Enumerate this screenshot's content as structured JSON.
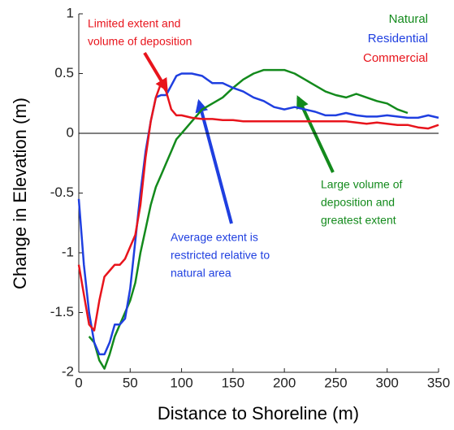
{
  "chart_data": {
    "type": "line",
    "x_label": "Distance to Shoreline (m)",
    "y_label": "Change in Elevation (m)",
    "x": [
      0,
      5,
      10,
      15,
      20,
      25,
      30,
      35,
      40,
      45,
      50,
      55,
      60,
      65,
      70,
      75,
      80,
      85,
      90,
      95,
      100,
      110,
      120,
      130,
      140,
      150,
      160,
      170,
      180,
      190,
      200,
      210,
      220,
      230,
      240,
      250,
      260,
      270,
      280,
      290,
      300,
      310,
      320,
      330,
      340,
      350
    ],
    "series": [
      {
        "name": "Natural",
        "color": "#138a1c",
        "values": [
          null,
          null,
          -1.7,
          -1.75,
          -1.9,
          -1.97,
          -1.85,
          -1.7,
          -1.6,
          -1.5,
          -1.4,
          -1.25,
          -1.0,
          -0.8,
          -0.6,
          -0.45,
          -0.35,
          -0.25,
          -0.15,
          -0.05,
          0.0,
          0.1,
          0.2,
          0.25,
          0.3,
          0.38,
          0.45,
          0.5,
          0.53,
          0.53,
          0.53,
          0.5,
          0.45,
          0.4,
          0.35,
          0.32,
          0.3,
          0.33,
          0.3,
          0.27,
          0.25,
          0.2,
          0.17,
          null,
          null,
          null
        ]
      },
      {
        "name": "Residential",
        "color": "#1f3fe0",
        "values": [
          -0.55,
          -1.1,
          -1.5,
          -1.75,
          -1.85,
          -1.85,
          -1.75,
          -1.6,
          -1.6,
          -1.55,
          -1.3,
          -0.9,
          -0.5,
          -0.15,
          0.1,
          0.3,
          0.32,
          0.32,
          0.4,
          0.48,
          0.5,
          0.5,
          0.48,
          0.42,
          0.42,
          0.38,
          0.35,
          0.3,
          0.27,
          0.22,
          0.2,
          0.22,
          0.2,
          0.18,
          0.15,
          0.15,
          0.17,
          0.15,
          0.14,
          0.14,
          0.15,
          0.14,
          0.13,
          0.13,
          0.15,
          0.13
        ]
      },
      {
        "name": "Commercial",
        "color": "#e8141c",
        "values": [
          -1.1,
          -1.35,
          -1.6,
          -1.65,
          -1.4,
          -1.2,
          -1.15,
          -1.1,
          -1.1,
          -1.05,
          -0.95,
          -0.85,
          -0.6,
          -0.2,
          0.1,
          0.3,
          0.42,
          0.35,
          0.2,
          0.15,
          0.15,
          0.13,
          0.12,
          0.12,
          0.11,
          0.11,
          0.1,
          0.1,
          0.1,
          0.1,
          0.1,
          0.1,
          0.1,
          0.1,
          0.1,
          0.1,
          0.1,
          0.09,
          0.08,
          0.09,
          0.08,
          0.07,
          0.07,
          0.05,
          0.04,
          0.07
        ]
      }
    ],
    "xlim": [
      0,
      350
    ],
    "xticks": [
      0,
      50,
      100,
      150,
      200,
      250,
      300,
      350
    ],
    "ylim": [
      -2,
      1
    ],
    "yticks": [
      -2,
      -1.5,
      -1,
      -0.5,
      0,
      0.5,
      1
    ],
    "legend": "upper right",
    "annotations": [
      {
        "lines": [
          "Limited extent and",
          "volume of deposition"
        ],
        "color": "#e8141c"
      },
      {
        "lines": [
          "Average extent is",
          "restricted relative to",
          "natural area"
        ],
        "color": "#1f3fe0"
      },
      {
        "lines": [
          "Large volume of",
          "deposition and",
          "greatest extent"
        ],
        "color": "#138a1c"
      }
    ]
  }
}
